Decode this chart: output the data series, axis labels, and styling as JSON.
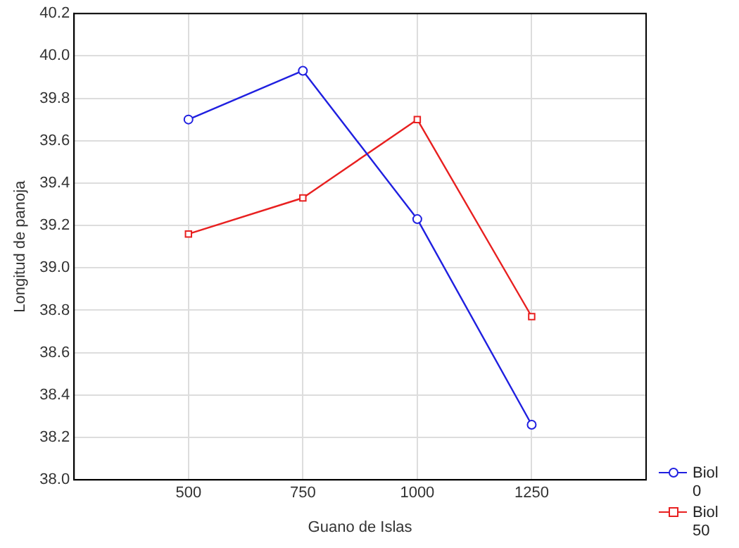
{
  "chart_data": {
    "type": "line",
    "xlabel": "Guano de Islas",
    "ylabel": "Longitud de panoja",
    "x": [
      500,
      750,
      1000,
      1250
    ],
    "series": [
      {
        "name": "Biol 0",
        "color": "#2020e0",
        "marker": "circle",
        "values": [
          39.7,
          39.93,
          39.23,
          38.26
        ]
      },
      {
        "name": "Biol 50",
        "color": "#e82020",
        "marker": "square",
        "values": [
          39.16,
          39.33,
          39.7,
          38.77
        ]
      }
    ],
    "xlim": [
      250,
      1500
    ],
    "xticks": [
      500,
      750,
      1000,
      1250
    ],
    "ylim": [
      38.0,
      40.2
    ],
    "yticks": [
      {
        "value": 38,
        "label": "38.0"
      },
      38.2,
      38.4,
      38.6,
      38.8,
      {
        "value": 39,
        "label": "39.0"
      },
      39.2,
      39.4,
      39.6,
      39.8,
      {
        "value": 40,
        "label": "40.0"
      },
      40.2
    ],
    "grid": true,
    "legend": "bottom right",
    "line_style": "solid"
  }
}
